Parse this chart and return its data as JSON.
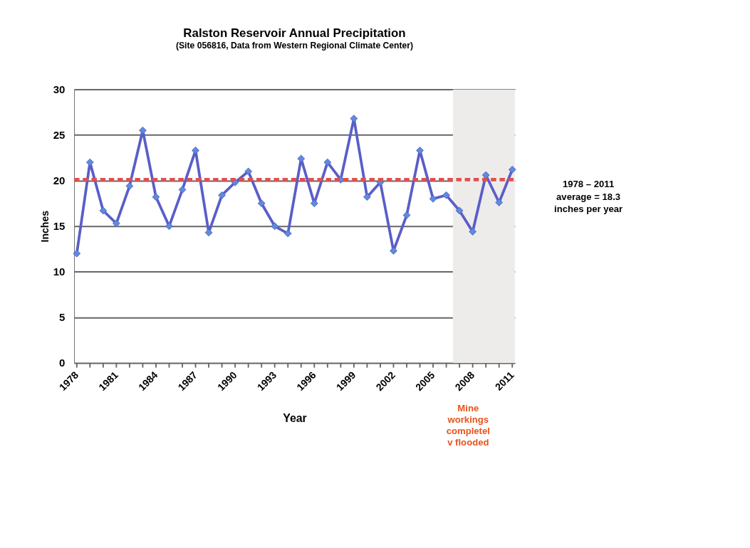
{
  "chart_data": {
    "type": "line",
    "title": "Ralston Reservoir Annual Precipitation",
    "subtitle": "(Site 056816, Data from Western Regional Climate Center)",
    "xlabel": "Year",
    "ylabel": "Inches",
    "x": [
      1978,
      1979,
      1980,
      1981,
      1982,
      1983,
      1984,
      1985,
      1986,
      1987,
      1988,
      1989,
      1990,
      1991,
      1992,
      1993,
      1994,
      1995,
      1996,
      1997,
      1998,
      1999,
      2000,
      2001,
      2002,
      2003,
      2004,
      2005,
      2006,
      2007,
      2008,
      2009,
      2010,
      2011
    ],
    "series": [
      {
        "color": "#5a5ec8",
        "values": [
          12.0,
          22.0,
          16.7,
          15.3,
          19.4,
          25.5,
          18.2,
          15.0,
          19.0,
          23.3,
          14.3,
          18.4,
          19.8,
          21.0,
          17.5,
          15.0,
          14.2,
          22.4,
          17.5,
          22.0,
          20.1,
          26.8,
          18.2,
          19.8,
          12.3,
          16.2,
          23.3,
          18.0,
          18.4,
          16.7,
          14.4,
          20.6,
          17.6,
          21.2
        ]
      }
    ],
    "marker": "diamond",
    "line_style": "solid",
    "grid": "y",
    "annotations": [
      "1978 – 2011 average = 18.3 inches per year",
      "Mine workings completel v flooded"
    ],
    "xlim": [
      1977.8,
      2011.2
    ],
    "xticks": [
      1978,
      {
        "value": 1979,
        "label": null
      },
      {
        "value": 1980,
        "label": null
      },
      1981,
      {
        "value": 1982,
        "label": null
      },
      {
        "value": 1983,
        "label": null
      },
      1984,
      {
        "value": 1985,
        "label": null
      },
      {
        "value": 1986,
        "label": null
      },
      1987,
      {
        "value": 1988,
        "label": null
      },
      {
        "value": 1989,
        "label": null
      },
      1990,
      {
        "value": 1991,
        "label": null
      },
      {
        "value": 1992,
        "label": null
      },
      1993,
      {
        "value": 1994,
        "label": null
      },
      {
        "value": 1995,
        "label": null
      },
      1996,
      {
        "value": 1997,
        "label": null
      },
      {
        "value": 1998,
        "label": null
      },
      1999,
      {
        "value": 2000,
        "label": null
      },
      {
        "value": 2001,
        "label": null
      },
      2002,
      {
        "value": 2003,
        "label": null
      },
      {
        "value": 2004,
        "label": null
      },
      2005,
      {
        "value": 2006,
        "label": null
      },
      {
        "value": 2007,
        "label": null
      },
      2008,
      {
        "value": 2009,
        "label": null
      },
      {
        "value": 2010,
        "label": null
      },
      2011
    ],
    "ylim": [
      0,
      30
    ],
    "yticks": [
      0,
      5,
      10,
      15,
      20,
      25,
      30
    ],
    "ref_lines": [
      {
        "axis": "y",
        "value": 20.1,
        "color": "#e05050",
        "line_style": "dashed"
      }
    ],
    "bands": [
      {
        "axis": "x",
        "from": 2006.5,
        "to": 2011.2,
        "color": "#eeecea"
      }
    ]
  }
}
